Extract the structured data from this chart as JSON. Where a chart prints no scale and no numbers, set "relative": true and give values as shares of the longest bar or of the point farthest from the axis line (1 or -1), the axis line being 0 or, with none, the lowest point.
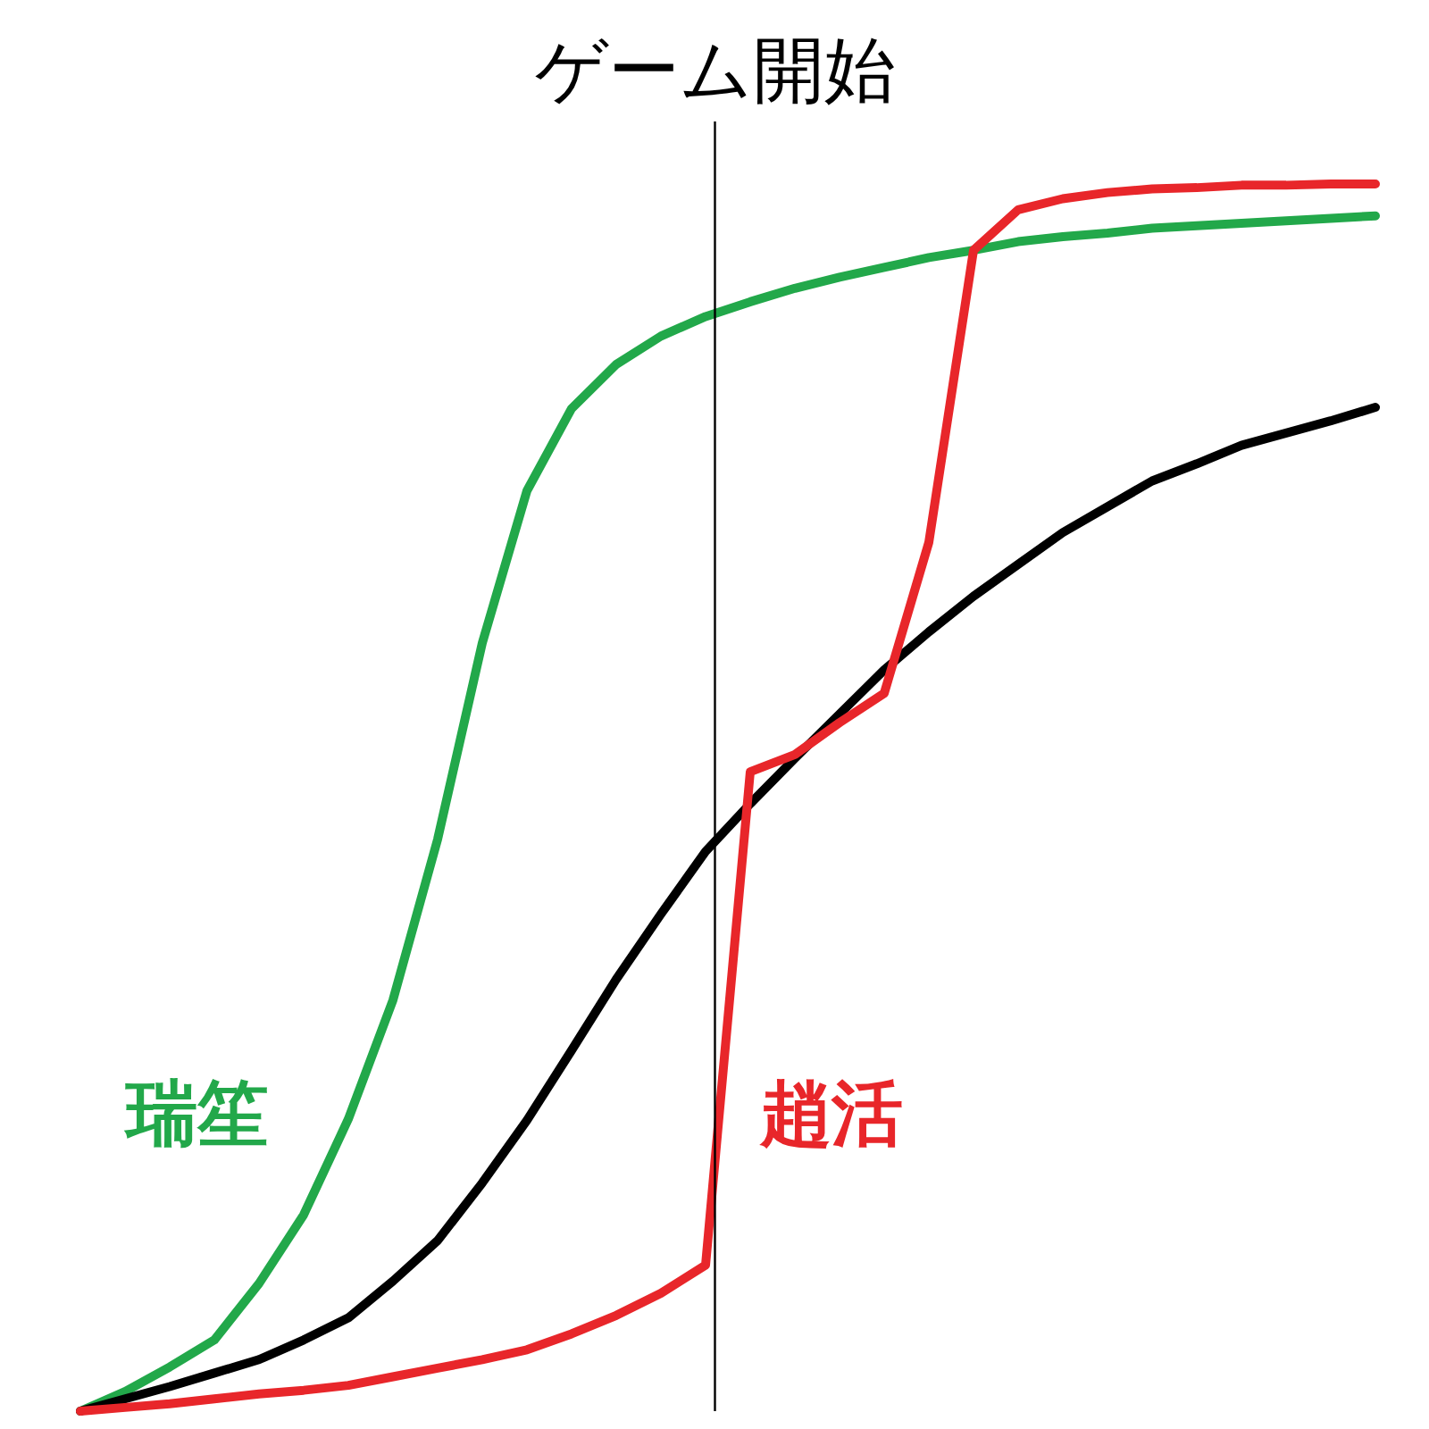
{
  "chart_data": {
    "type": "line",
    "relative": true,
    "tick_labels": false,
    "line_style": "solid",
    "categories": [
      null,
      null,
      null,
      null,
      null,
      null,
      null,
      null,
      null,
      null,
      null,
      null,
      null,
      null,
      null,
      null,
      null,
      null,
      null,
      null,
      null,
      null,
      null,
      null,
      null,
      null,
      null,
      null,
      null,
      null
    ],
    "series": [
      {
        "name": "瑞笙",
        "color": "#22a84a",
        "values": [
          0,
          0.016,
          0.036,
          0.058,
          0.104,
          0.16,
          0.238,
          0.335,
          0.466,
          0.626,
          0.75,
          0.817,
          0.853,
          0.876,
          0.892,
          0.904,
          0.915,
          0.924,
          0.932,
          0.94,
          0.946,
          0.953,
          0.957,
          0.96,
          0.964,
          0.966,
          0.968,
          0.97,
          0.972,
          0.974
        ]
      },
      {
        "color": "#000000",
        "values": [
          0,
          0.01,
          0.02,
          0.031,
          0.042,
          0.058,
          0.076,
          0.106,
          0.139,
          0.186,
          0.237,
          0.294,
          0.352,
          0.405,
          0.456,
          0.495,
          0.532,
          0.568,
          0.604,
          0.635,
          0.664,
          0.69,
          0.716,
          0.737,
          0.758,
          0.772,
          0.787,
          0.797,
          0.807,
          0.818
        ]
      },
      {
        "name": "趙活",
        "color": "#e8262a",
        "values": [
          0,
          0.003,
          0.006,
          0.01,
          0.014,
          0.017,
          0.021,
          0.028,
          0.035,
          0.042,
          0.05,
          0.063,
          0.078,
          0.096,
          0.119,
          0.521,
          0.535,
          0.561,
          0.585,
          0.708,
          0.946,
          0.979,
          0.988,
          0.993,
          0.996,
          0.997,
          0.999,
          0.999,
          1,
          1
        ]
      }
    ],
    "ref_lines": [
      {
        "axis": "x",
        "label": "ゲーム開始",
        "color": "#000000",
        "line_style": "solid"
      }
    ]
  }
}
